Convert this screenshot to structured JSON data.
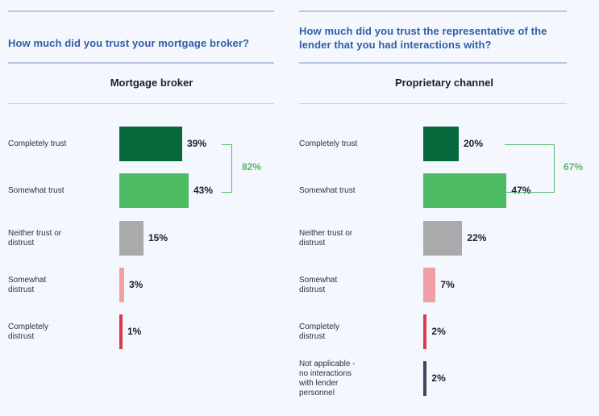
{
  "chart_data": [
    {
      "type": "bar",
      "orientation": "horizontal",
      "question": "How much did you trust your mortgage broker?",
      "title": "Mortgage broker",
      "categories": [
        "Completely trust",
        "Somewhat trust",
        "Neither trust or distrust",
        "Somewhat distrust",
        "Completely distrust"
      ],
      "values": [
        39,
        43,
        15,
        3,
        1
      ],
      "value_labels": [
        "39%",
        "43%",
        "15%",
        "3%",
        "1%"
      ],
      "colors": [
        "#05693b",
        "#4dbb64",
        "#a8aaac",
        "#f0a0a4",
        "#d83b4e"
      ],
      "bracket": {
        "label": "82%",
        "value": 82,
        "spans": [
          "Completely trust",
          "Somewhat trust"
        ]
      }
    },
    {
      "type": "bar",
      "orientation": "horizontal",
      "question": "How much did you trust the representative of the lender that you had interactions with?",
      "title": "Proprietary channel",
      "categories": [
        "Completely trust",
        "Somewhat trust",
        "Neither trust or distrust",
        "Somewhat distrust",
        "Completely distrust",
        "Not applicable - no interactions with lender personnel"
      ],
      "values": [
        20,
        47,
        22,
        7,
        2,
        2
      ],
      "value_labels": [
        "20%",
        "47%",
        "22%",
        "7%",
        "2%",
        "2%"
      ],
      "colors": [
        "#05693b",
        "#4dbb64",
        "#a8aaac",
        "#f0a0a4",
        "#d83b4e",
        "#3a4a5e"
      ],
      "bracket": {
        "label": "67%",
        "value": 67,
        "spans": [
          "Completely trust",
          "Somewhat trust"
        ]
      }
    }
  ]
}
